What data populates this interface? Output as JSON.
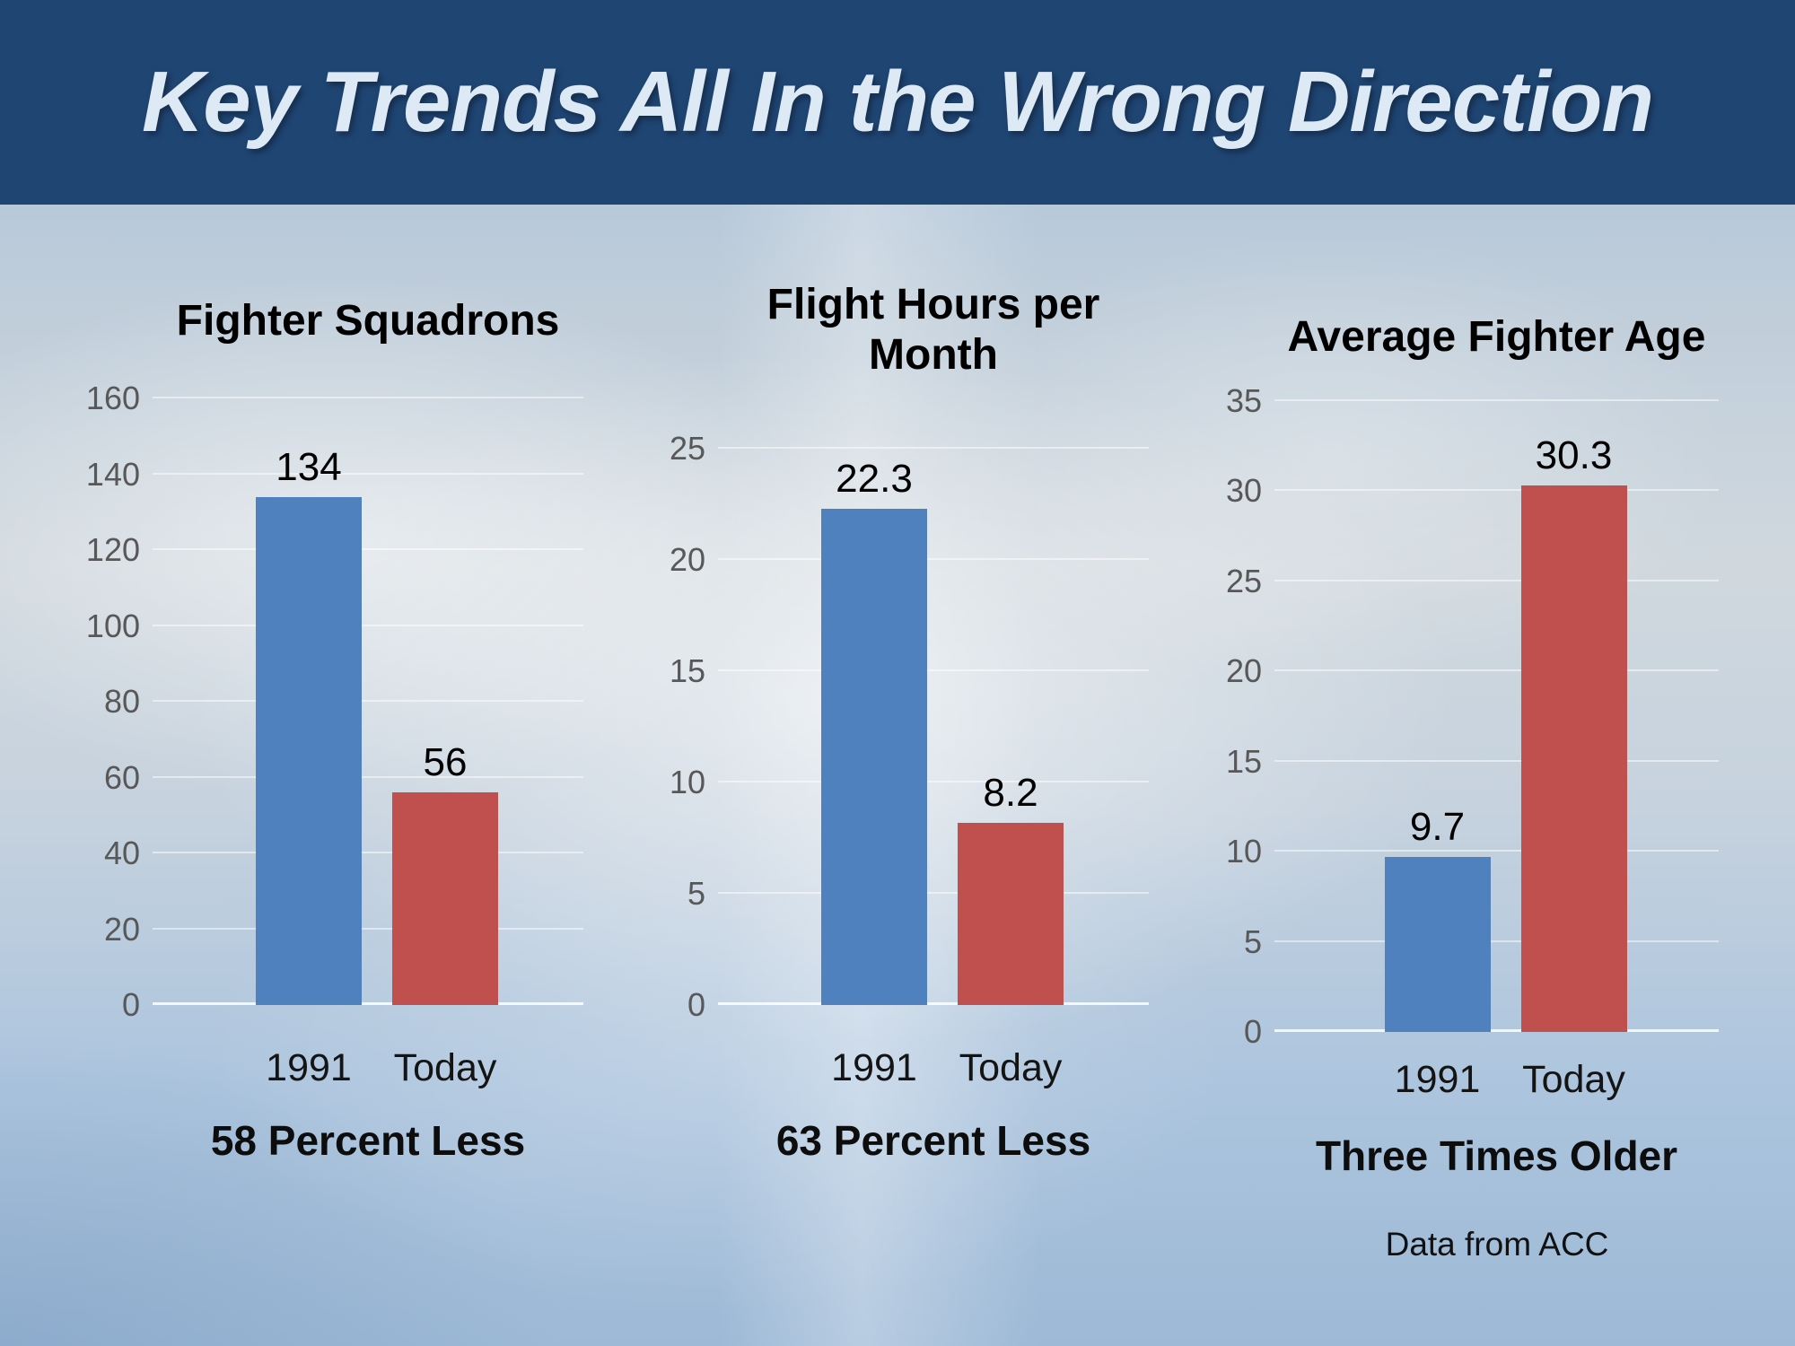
{
  "slide": {
    "title": "Key Trends All In the Wrong Direction",
    "footer": "Data from ACC",
    "colors": {
      "banner": "#1f4573",
      "title_text": "#dde9f4",
      "bar_1991": "#4e81bd",
      "bar_today": "#c0504d",
      "axis_label": "#585858",
      "gridline": "rgba(255,255,255,0.5)"
    }
  },
  "chart_data": [
    {
      "type": "bar",
      "title": "Fighter Squadrons",
      "categories": [
        "1991",
        "Today"
      ],
      "values": [
        134,
        56
      ],
      "data_labels": [
        "134",
        "56"
      ],
      "series_colors": [
        "#4e81bd",
        "#c0504d"
      ],
      "ylim": [
        0,
        160
      ],
      "ytick_step": 20,
      "grid": true,
      "legend": "none",
      "caption": "58 Percent Less"
    },
    {
      "type": "bar",
      "title": "Flight Hours per Month",
      "categories": [
        "1991",
        "Today"
      ],
      "values": [
        22.3,
        8.2
      ],
      "data_labels": [
        "22.3",
        "8.2"
      ],
      "series_colors": [
        "#4e81bd",
        "#c0504d"
      ],
      "ylim": [
        0,
        25
      ],
      "ytick_step": 5,
      "grid": true,
      "legend": "none",
      "caption": "63 Percent Less"
    },
    {
      "type": "bar",
      "title": "Average Fighter Age",
      "categories": [
        "1991",
        "Today"
      ],
      "values": [
        9.7,
        30.3
      ],
      "data_labels": [
        "9.7",
        "30.3"
      ],
      "series_colors": [
        "#4e81bd",
        "#c0504d"
      ],
      "ylim": [
        0,
        35
      ],
      "ytick_step": 5,
      "grid": true,
      "legend": "none",
      "caption": "Three Times Older"
    }
  ]
}
